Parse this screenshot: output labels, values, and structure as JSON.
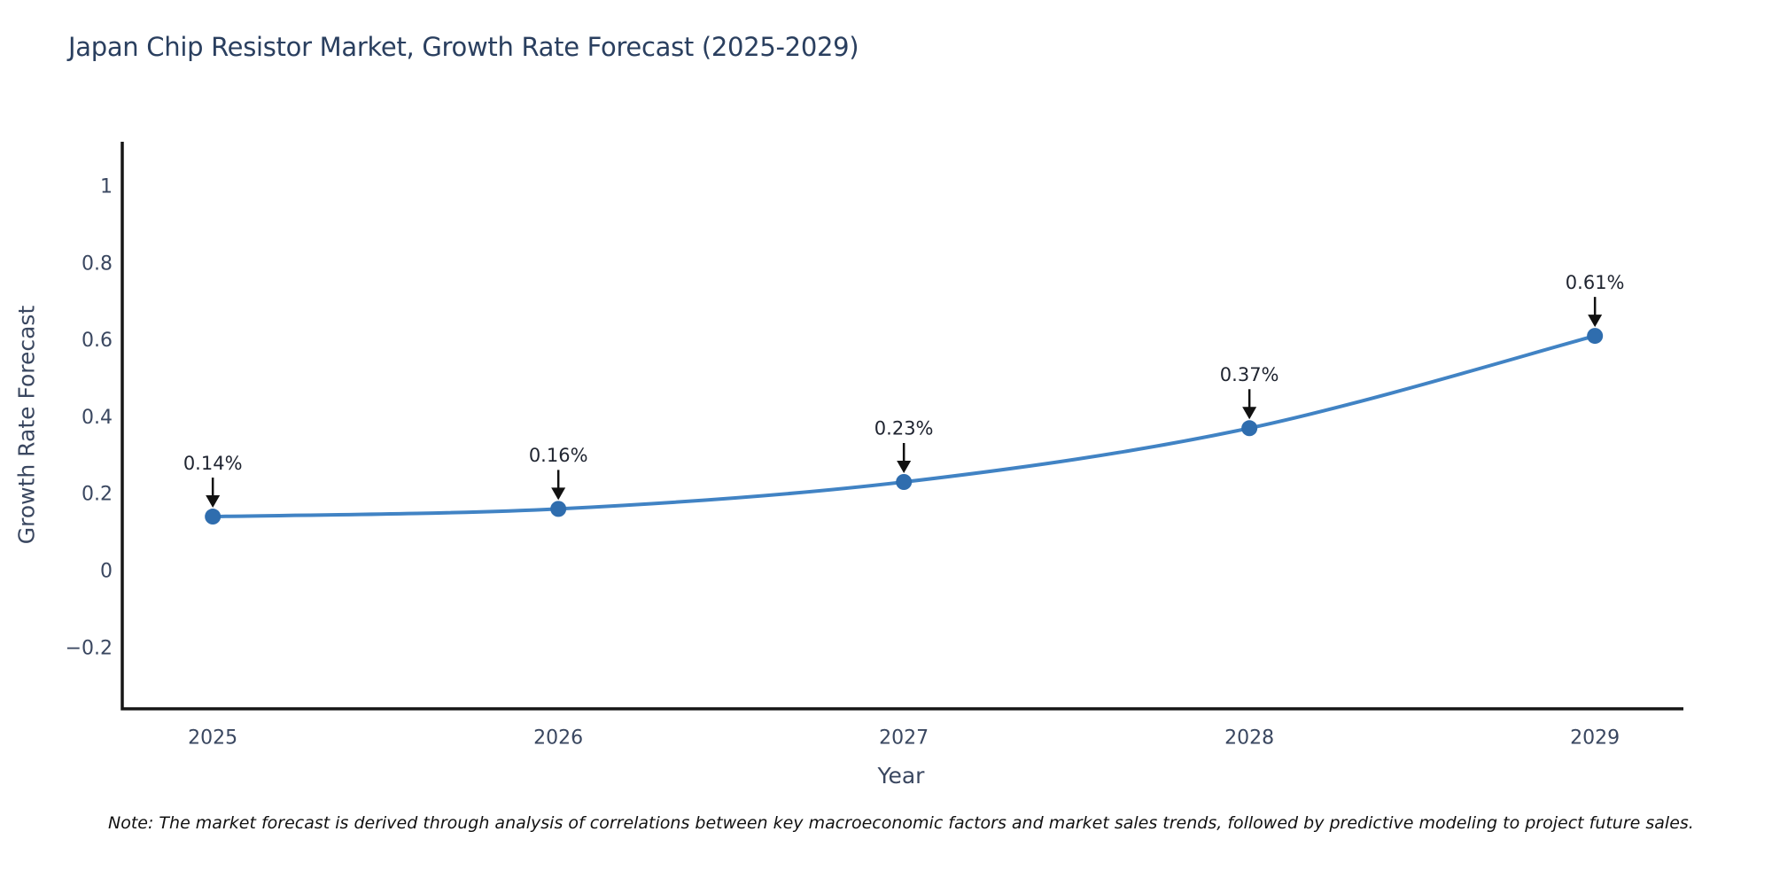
{
  "title": "Japan Chip Resistor Market, Growth Rate Forecast (2025-2029)",
  "note": "Note: The market forecast is derived through analysis of correlations between key macroeconomic factors and market sales trends, followed by predictive modeling to project future sales.",
  "chart_data": {
    "type": "line",
    "line_shape": "spline",
    "grid": false,
    "x": [
      2025,
      2026,
      2027,
      2028,
      2029
    ],
    "y": [
      0.14,
      0.16,
      0.23,
      0.37,
      0.61
    ],
    "point_labels": [
      "0.14%",
      "0.16%",
      "0.23%",
      "0.37%",
      "0.61%"
    ],
    "xtick_labels": [
      "2025",
      "2026",
      "2027",
      "2028",
      "2029"
    ],
    "ytick_values": [
      1,
      0.8,
      0.6,
      0.4,
      0.2,
      0,
      -0.2
    ],
    "ytick_labels": [
      "1",
      "0.8",
      "0.6",
      "0.4",
      "0.2",
      "0",
      "−0.2"
    ],
    "xlabel": "Year",
    "ylabel": "Growth Rate Forecast",
    "xlim": [
      2024.738,
      2029.256
    ],
    "ylim": [
      -0.36,
      1.115
    ],
    "colors": {
      "line": "#4183c4",
      "marker": "#2f6dae",
      "arrow": "#111111",
      "annotation_text": "#1f2430",
      "axis_line": "#161616",
      "tick_text": "#3a4760",
      "title_text": "#2a3f5f"
    }
  }
}
